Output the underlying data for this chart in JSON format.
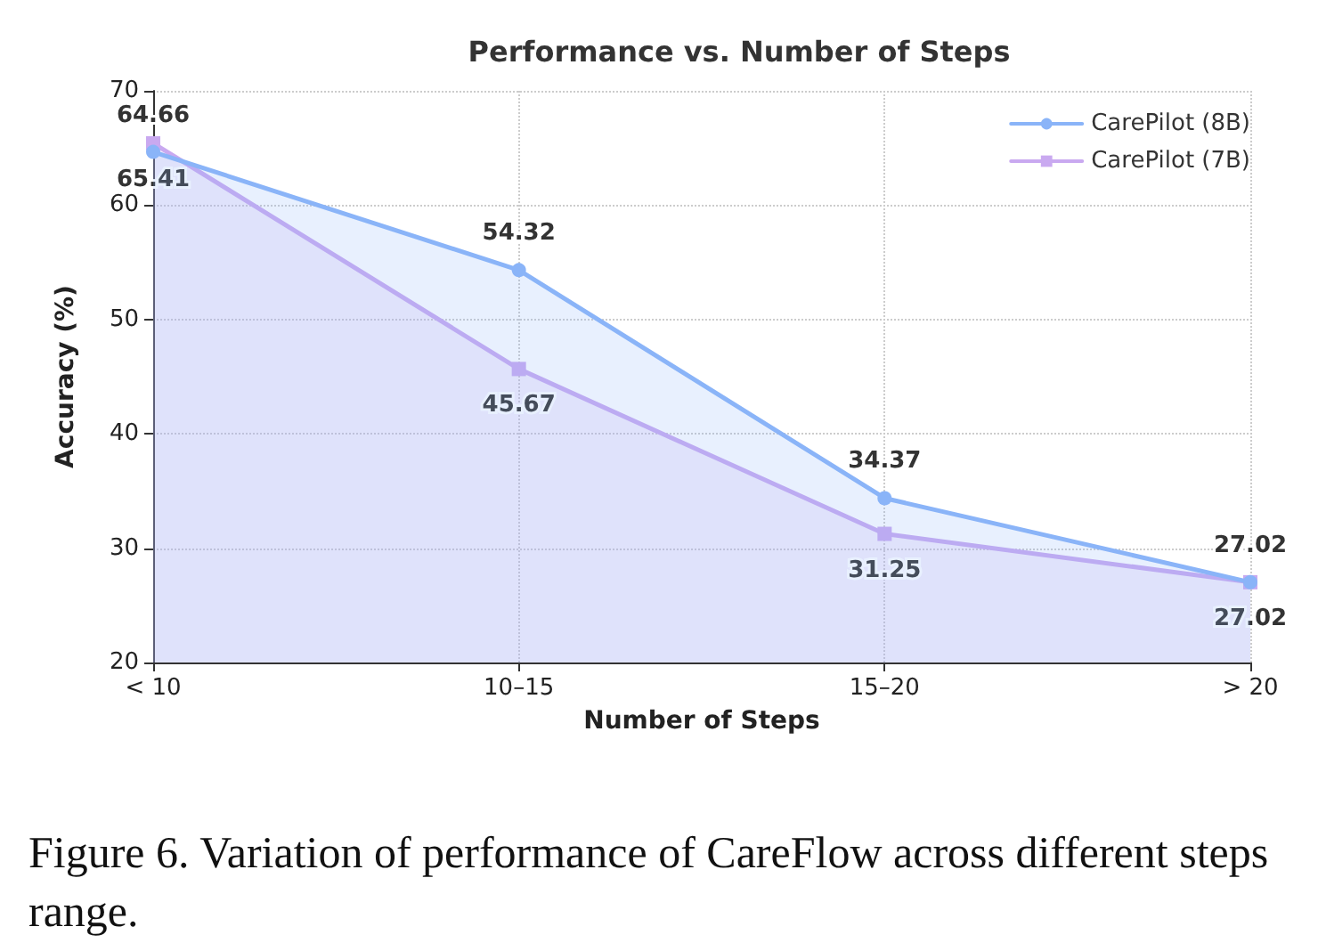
{
  "chart_data": {
    "type": "area",
    "title": "Performance vs. Number of Steps",
    "xlabel": "Number of Steps",
    "ylabel": "Accuracy (%)",
    "categories": [
      "< 10",
      "10–15",
      "15–20",
      "> 20"
    ],
    "series": [
      {
        "name": "CarePilot (8B)",
        "color": "#8ab4f8",
        "values": [
          64.66,
          54.32,
          34.37,
          27.02
        ],
        "marker": "circle"
      },
      {
        "name": "CarePilot (7B)",
        "color": "#c9a9f0",
        "values": [
          65.41,
          45.67,
          31.25,
          27.02
        ],
        "marker": "square"
      }
    ],
    "ylim": [
      20,
      70
    ],
    "yticks": [
      20,
      30,
      40,
      50,
      60,
      70
    ],
    "grid": true,
    "legend": "top right",
    "data_labels": true,
    "line_style": "solid",
    "annotations": [
      "Figure 6. Variation of performance of CareFlow across different steps range."
    ]
  }
}
